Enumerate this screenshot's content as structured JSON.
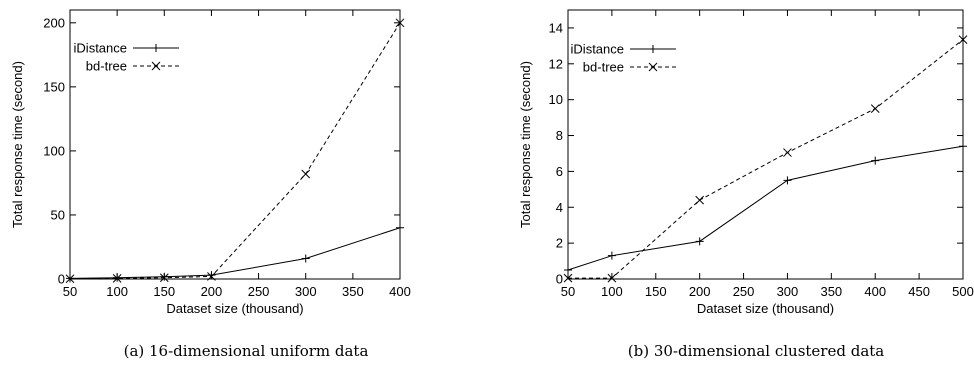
{
  "chart_data": [
    {
      "type": "line",
      "caption": "(a) 16-dimensional uniform data",
      "xlabel": "Dataset size (thousand)",
      "ylabel": "Total response time (second)",
      "xlim": [
        50,
        400
      ],
      "ylim": [
        0,
        210
      ],
      "xticks": [
        50,
        100,
        150,
        200,
        250,
        300,
        350,
        400
      ],
      "yticks": [
        0,
        50,
        100,
        150,
        200
      ],
      "grid": false,
      "legend": "top-left",
      "series": [
        {
          "name": "iDistance",
          "marker": "+",
          "dash": "solid",
          "x": [
            50,
            100,
            150,
            200,
            300,
            400
          ],
          "y": [
            0.5,
            1,
            1.8,
            3,
            16,
            40
          ]
        },
        {
          "name": "bd-tree",
          "marker": "x",
          "dash": "dashed",
          "x": [
            50,
            100,
            150,
            200,
            300,
            400
          ],
          "y": [
            0.2,
            0.5,
            1,
            2,
            82,
            200
          ]
        }
      ]
    },
    {
      "type": "line",
      "caption": "(b) 30-dimensional clustered data",
      "xlabel": "Dataset size (thousand)",
      "ylabel": "Total response time (second)",
      "xlim": [
        50,
        500
      ],
      "ylim": [
        0,
        15
      ],
      "xticks": [
        50,
        100,
        150,
        200,
        250,
        300,
        350,
        400,
        450,
        500
      ],
      "yticks": [
        0,
        2,
        4,
        6,
        8,
        10,
        12,
        14
      ],
      "grid": false,
      "legend": "top-left",
      "series": [
        {
          "name": "iDistance",
          "marker": "+",
          "dash": "solid",
          "x": [
            50,
            100,
            200,
            300,
            400,
            500
          ],
          "y": [
            0.5,
            1.3,
            2.1,
            5.5,
            6.6,
            7.4
          ]
        },
        {
          "name": "bd-tree",
          "marker": "x",
          "dash": "dashed",
          "x": [
            50,
            100,
            200,
            300,
            400,
            500
          ],
          "y": [
            0.05,
            0.05,
            4.4,
            7.05,
            9.5,
            13.35
          ]
        }
      ]
    }
  ]
}
